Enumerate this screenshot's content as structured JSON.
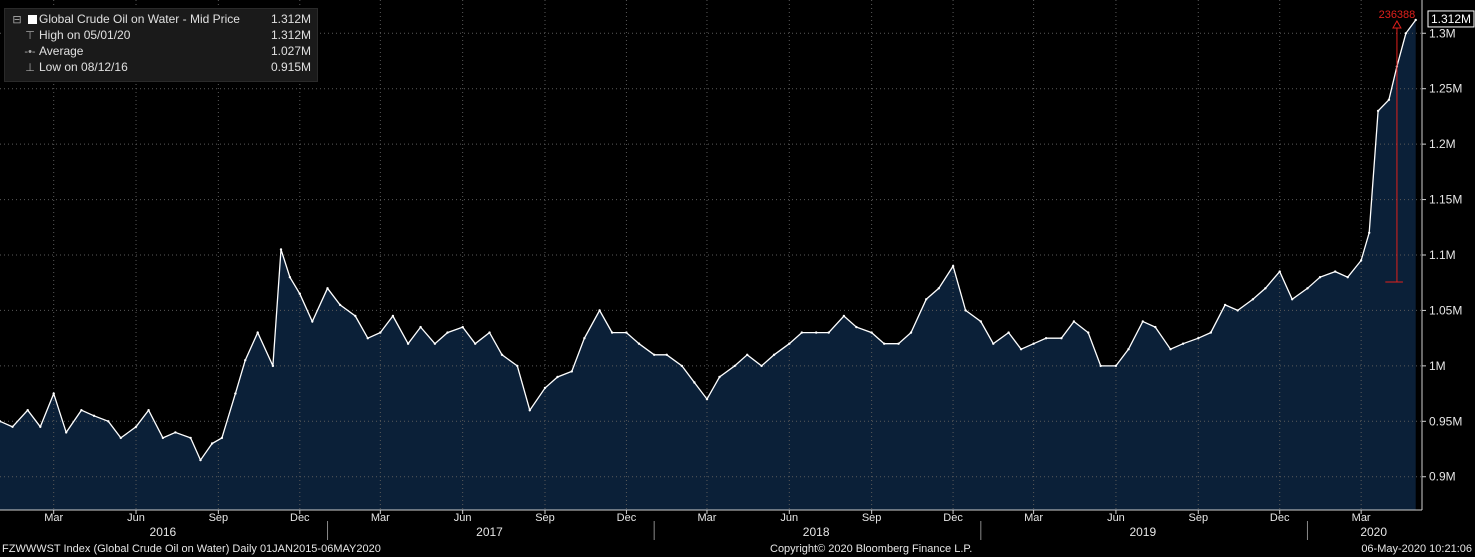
{
  "legend": {
    "series_label": "Global Crude Oil on Water - Mid Price",
    "series_value": "1.312M",
    "high_label": "High on 05/01/20",
    "high_value": "1.312M",
    "average_label": "Average",
    "average_value": "1.027M",
    "low_label": "Low on 08/12/16",
    "low_value": "0.915M"
  },
  "footer": {
    "left": "FZWWWST Index (Global Crude Oil on Water)  Daily 01JAN2015-06MAY2020",
    "center": "Copyright© 2020 Bloomberg Finance L.P.",
    "right": "06-May-2020 10:21:06"
  },
  "colors": {
    "background": "#000000",
    "area_fill": "#0b2038",
    "line": "#ffffff",
    "grid": "#5a5a5a",
    "annotation": "#e0201c"
  },
  "chart_data": {
    "type": "area",
    "title": "Global Crude Oil on Water - Mid Price",
    "ylabel": "",
    "xlabel": "",
    "ylim": [
      0.87,
      1.33
    ],
    "xlim": [
      "2016-01-01",
      "2020-05-08"
    ],
    "grid": true,
    "y_ticks": [
      0.9,
      0.95,
      1.0,
      1.05,
      1.1,
      1.15,
      1.2,
      1.25,
      1.3
    ],
    "y_tick_labels": [
      "0.9M",
      "0.95M",
      "1M",
      "1.05M",
      "1.1M",
      "1.15M",
      "1.2M",
      "1.25M",
      "1.3M"
    ],
    "x_month_ticks": [
      {
        "label": "Mar",
        "date": "2016-03-01"
      },
      {
        "label": "Jun",
        "date": "2016-06-01"
      },
      {
        "label": "Sep",
        "date": "2016-09-01"
      },
      {
        "label": "Dec",
        "date": "2016-12-01"
      },
      {
        "label": "Mar",
        "date": "2017-03-01"
      },
      {
        "label": "Jun",
        "date": "2017-06-01"
      },
      {
        "label": "Sep",
        "date": "2017-09-01"
      },
      {
        "label": "Dec",
        "date": "2017-12-01"
      },
      {
        "label": "Mar",
        "date": "2018-03-01"
      },
      {
        "label": "Jun",
        "date": "2018-06-01"
      },
      {
        "label": "Sep",
        "date": "2018-09-01"
      },
      {
        "label": "Dec",
        "date": "2018-12-01"
      },
      {
        "label": "Mar",
        "date": "2019-03-01"
      },
      {
        "label": "Jun",
        "date": "2019-06-01"
      },
      {
        "label": "Sep",
        "date": "2019-09-01"
      },
      {
        "label": "Dec",
        "date": "2019-12-01"
      },
      {
        "label": "Mar",
        "date": "2020-03-01"
      }
    ],
    "x_year_labels": [
      {
        "label": "2016",
        "date": "2016-07-01"
      },
      {
        "label": "2017",
        "date": "2017-07-01"
      },
      {
        "label": "2018",
        "date": "2018-07-01"
      },
      {
        "label": "2019",
        "date": "2019-07-01"
      },
      {
        "label": "2020",
        "date": "2020-03-15"
      }
    ],
    "year_separators": [
      "2017-01-01",
      "2018-01-01",
      "2019-01-01",
      "2020-01-01"
    ],
    "series": [
      {
        "name": "Global Crude Oil on Water - Mid Price",
        "x": [
          "2016-01-01",
          "2016-01-15",
          "2016-02-01",
          "2016-02-15",
          "2016-03-01",
          "2016-03-15",
          "2016-04-01",
          "2016-04-15",
          "2016-05-01",
          "2016-05-15",
          "2016-06-01",
          "2016-06-15",
          "2016-07-01",
          "2016-07-15",
          "2016-08-01",
          "2016-08-12",
          "2016-08-25",
          "2016-09-05",
          "2016-09-20",
          "2016-10-01",
          "2016-10-15",
          "2016-11-01",
          "2016-11-10",
          "2016-11-20",
          "2016-12-01",
          "2016-12-15",
          "2017-01-01",
          "2017-01-15",
          "2017-02-01",
          "2017-02-15",
          "2017-03-01",
          "2017-03-15",
          "2017-04-01",
          "2017-04-15",
          "2017-05-01",
          "2017-05-15",
          "2017-06-01",
          "2017-06-15",
          "2017-07-01",
          "2017-07-15",
          "2017-08-01",
          "2017-08-15",
          "2017-09-01",
          "2017-09-15",
          "2017-10-01",
          "2017-10-15",
          "2017-11-01",
          "2017-11-15",
          "2017-12-01",
          "2017-12-15",
          "2018-01-01",
          "2018-01-15",
          "2018-02-01",
          "2018-02-15",
          "2018-03-01",
          "2018-03-15",
          "2018-04-01",
          "2018-04-15",
          "2018-05-01",
          "2018-05-15",
          "2018-06-01",
          "2018-06-15",
          "2018-07-01",
          "2018-07-15",
          "2018-08-01",
          "2018-08-15",
          "2018-09-01",
          "2018-09-15",
          "2018-10-01",
          "2018-10-15",
          "2018-11-01",
          "2018-11-15",
          "2018-12-01",
          "2018-12-15",
          "2019-01-01",
          "2019-01-15",
          "2019-02-01",
          "2019-02-15",
          "2019-03-01",
          "2019-03-15",
          "2019-04-01",
          "2019-04-15",
          "2019-05-01",
          "2019-05-15",
          "2019-06-01",
          "2019-06-15",
          "2019-07-01",
          "2019-07-15",
          "2019-08-01",
          "2019-08-15",
          "2019-09-01",
          "2019-09-15",
          "2019-10-01",
          "2019-10-15",
          "2019-11-01",
          "2019-11-15",
          "2019-12-01",
          "2019-12-15",
          "2020-01-01",
          "2020-01-15",
          "2020-02-01",
          "2020-02-15",
          "2020-03-01",
          "2020-03-10",
          "2020-03-20",
          "2020-04-01",
          "2020-04-10",
          "2020-04-20",
          "2020-05-01"
        ],
        "y": [
          0.95,
          0.945,
          0.96,
          0.945,
          0.975,
          0.94,
          0.96,
          0.955,
          0.95,
          0.935,
          0.945,
          0.96,
          0.935,
          0.94,
          0.935,
          0.915,
          0.93,
          0.935,
          0.975,
          1.005,
          1.03,
          1.0,
          1.105,
          1.08,
          1.065,
          1.04,
          1.07,
          1.055,
          1.045,
          1.025,
          1.03,
          1.045,
          1.02,
          1.035,
          1.02,
          1.03,
          1.035,
          1.02,
          1.03,
          1.01,
          1.0,
          0.96,
          0.98,
          0.99,
          0.995,
          1.025,
          1.05,
          1.03,
          1.03,
          1.02,
          1.01,
          1.01,
          1.0,
          0.985,
          0.97,
          0.99,
          1.0,
          1.01,
          1.0,
          1.01,
          1.02,
          1.03,
          1.03,
          1.03,
          1.045,
          1.035,
          1.03,
          1.02,
          1.02,
          1.03,
          1.06,
          1.07,
          1.09,
          1.05,
          1.04,
          1.02,
          1.03,
          1.015,
          1.02,
          1.025,
          1.025,
          1.04,
          1.03,
          1.0,
          1.0,
          1.015,
          1.04,
          1.035,
          1.015,
          1.02,
          1.025,
          1.03,
          1.055,
          1.05,
          1.06,
          1.07,
          1.085,
          1.06,
          1.07,
          1.08,
          1.085,
          1.08,
          1.095,
          1.12,
          1.23,
          1.24,
          1.27,
          1.3,
          1.312
        ]
      }
    ],
    "annotations": {
      "change_label": "236388",
      "change_from": {
        "date": "2020-03-28",
        "value": 1.0756
      },
      "change_to": {
        "date": "2020-04-10",
        "value": 1.312
      },
      "last_price_label": "1.312M"
    }
  }
}
